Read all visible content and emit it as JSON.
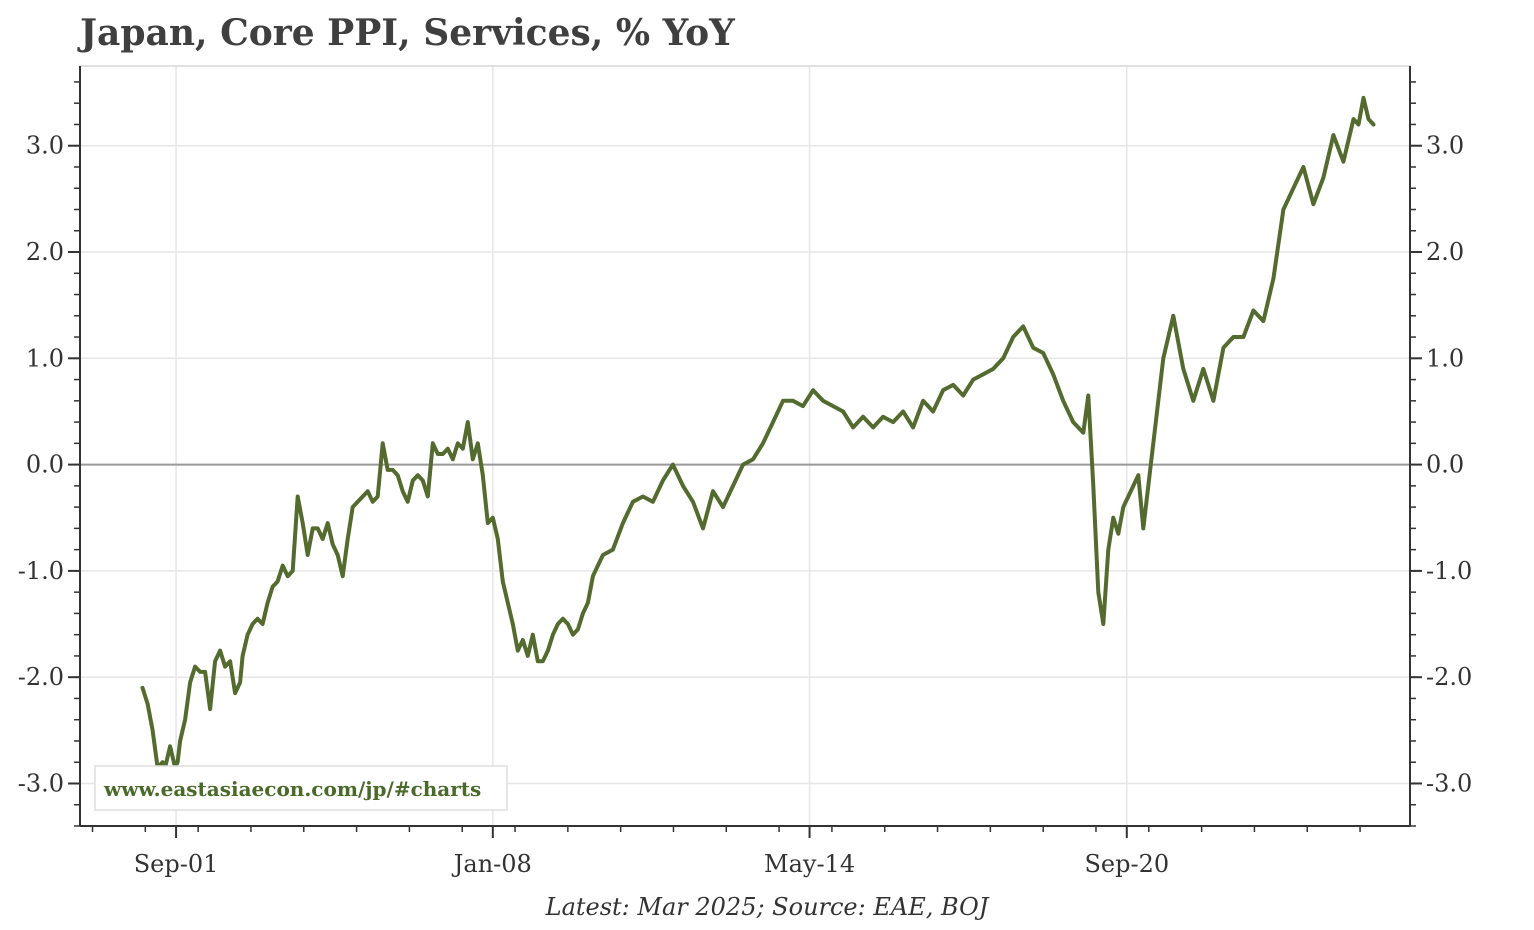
{
  "chart_data": {
    "type": "line",
    "title": "Japan, Core PPI, Services, % YoY",
    "footer": "Latest: Mar 2025; Source: EAE, BOJ",
    "watermark": "www.eastasiaecon.com/jp/#charts",
    "xlabel": "",
    "ylabel": "",
    "ylim": [
      -3.4,
      3.75
    ],
    "y_ticks": [
      -3.0,
      -2.0,
      -1.0,
      0.0,
      1.0,
      2.0,
      3.0
    ],
    "y_tick_labels": [
      "-3.0",
      "-2.0",
      "-1.0",
      "0.0",
      "1.0",
      "2.0",
      "3.0"
    ],
    "x_ticks": [
      {
        "t": 2001.67,
        "label": "Sep-01"
      },
      {
        "t": 2008.0,
        "label": "Jan-08"
      },
      {
        "t": 2014.33,
        "label": "May-14"
      },
      {
        "t": 2020.67,
        "label": "Sep-20"
      }
    ],
    "xlim": [
      1999.75,
      2026.33
    ],
    "line_color": "#536b2e",
    "series": [
      {
        "name": "Core PPI Services % YoY",
        "x": [
          2001.0,
          2001.1,
          2001.2,
          2001.3,
          2001.4,
          2001.45,
          2001.55,
          2001.65,
          2001.7,
          2001.75,
          2001.85,
          2001.95,
          2002.05,
          2002.15,
          2002.25,
          2002.35,
          2002.45,
          2002.55,
          2002.65,
          2002.75,
          2002.85,
          2002.95,
          2003.0,
          2003.1,
          2003.2,
          2003.3,
          2003.4,
          2003.5,
          2003.6,
          2003.7,
          2003.8,
          2003.9,
          2004.0,
          2004.1,
          2004.2,
          2004.3,
          2004.4,
          2004.5,
          2004.6,
          2004.7,
          2004.8,
          2004.9,
          2005.0,
          2005.1,
          2005.2,
          2005.3,
          2005.4,
          2005.5,
          2005.6,
          2005.7,
          2005.8,
          2005.9,
          2006.0,
          2006.1,
          2006.2,
          2006.3,
          2006.4,
          2006.5,
          2006.6,
          2006.7,
          2006.8,
          2006.9,
          2007.0,
          2007.1,
          2007.2,
          2007.3,
          2007.4,
          2007.5,
          2007.6,
          2007.7,
          2007.8,
          2007.9,
          2008.0,
          2008.1,
          2008.2,
          2008.3,
          2008.4,
          2008.5,
          2008.6,
          2008.7,
          2008.8,
          2008.9,
          2009.0,
          2009.1,
          2009.2,
          2009.3,
          2009.4,
          2009.5,
          2009.6,
          2009.7,
          2009.8,
          2009.9,
          2010.0,
          2010.2,
          2010.4,
          2010.6,
          2010.8,
          2011.0,
          2011.2,
          2011.4,
          2011.6,
          2011.8,
          2012.0,
          2012.2,
          2012.4,
          2012.6,
          2012.8,
          2013.0,
          2013.2,
          2013.4,
          2013.6,
          2013.8,
          2014.0,
          2014.2,
          2014.4,
          2014.6,
          2014.8,
          2015.0,
          2015.2,
          2015.4,
          2015.6,
          2015.8,
          2016.0,
          2016.2,
          2016.4,
          2016.6,
          2016.8,
          2017.0,
          2017.2,
          2017.4,
          2017.6,
          2017.8,
          2018.0,
          2018.2,
          2018.4,
          2018.6,
          2018.8,
          2019.0,
          2019.2,
          2019.4,
          2019.6,
          2019.8,
          2019.9,
          2020.0,
          2020.1,
          2020.2,
          2020.3,
          2020.4,
          2020.5,
          2020.6,
          2020.7,
          2020.8,
          2020.9,
          2021.0,
          2021.2,
          2021.4,
          2021.6,
          2021.8,
          2022.0,
          2022.2,
          2022.4,
          2022.6,
          2022.8,
          2023.0,
          2023.2,
          2023.4,
          2023.6,
          2023.8,
          2024.0,
          2024.2,
          2024.4,
          2024.6,
          2024.8,
          2025.0,
          2025.2,
          2025.3,
          2025.4,
          2025.5,
          2025.6
        ],
        "values": [
          -2.1,
          -2.25,
          -2.5,
          -2.85,
          -2.8,
          -2.85,
          -2.65,
          -2.85,
          -2.8,
          -2.6,
          -2.4,
          -2.05,
          -1.9,
          -1.95,
          -1.95,
          -2.3,
          -1.85,
          -1.75,
          -1.9,
          -1.85,
          -2.15,
          -2.05,
          -1.8,
          -1.6,
          -1.5,
          -1.45,
          -1.5,
          -1.3,
          -1.15,
          -1.1,
          -0.95,
          -1.05,
          -1.0,
          -0.3,
          -0.55,
          -0.85,
          -0.6,
          -0.6,
          -0.7,
          -0.55,
          -0.75,
          -0.85,
          -1.05,
          -0.7,
          -0.4,
          -0.35,
          -0.3,
          -0.25,
          -0.35,
          -0.3,
          0.2,
          -0.05,
          -0.05,
          -0.1,
          -0.25,
          -0.35,
          -0.15,
          -0.1,
          -0.15,
          -0.3,
          0.2,
          0.1,
          0.1,
          0.15,
          0.05,
          0.2,
          0.15,
          0.4,
          0.05,
          0.2,
          -0.1,
          -0.55,
          -0.5,
          -0.7,
          -1.1,
          -1.3,
          -1.5,
          -1.75,
          -1.65,
          -1.8,
          -1.6,
          -1.85,
          -1.85,
          -1.75,
          -1.6,
          -1.5,
          -1.45,
          -1.5,
          -1.6,
          -1.55,
          -1.4,
          -1.3,
          -1.05,
          -0.85,
          -0.8,
          -0.55,
          -0.35,
          -0.3,
          -0.35,
          -0.15,
          0.0,
          -0.2,
          -0.35,
          -0.6,
          -0.25,
          -0.4,
          -0.2,
          0.0,
          0.05,
          0.2,
          0.4,
          0.6,
          0.6,
          0.55,
          0.7,
          0.6,
          0.55,
          0.5,
          0.35,
          0.45,
          0.35,
          0.45,
          0.4,
          0.5,
          0.35,
          0.6,
          0.5,
          0.7,
          0.75,
          0.65,
          0.8,
          0.85,
          0.9,
          1.0,
          1.2,
          1.3,
          1.1,
          1.05,
          0.85,
          0.6,
          0.4,
          0.3,
          0.65,
          -0.2,
          -1.2,
          -1.5,
          -0.8,
          -0.5,
          -0.65,
          -0.4,
          -0.3,
          -0.2,
          -0.1,
          -0.6,
          0.2,
          1.0,
          1.4,
          0.9,
          0.6,
          0.9,
          0.6,
          1.1,
          1.2,
          1.2,
          1.45,
          1.35,
          1.75,
          2.4,
          2.6,
          2.8,
          2.45,
          2.7,
          3.1,
          2.85,
          3.25,
          3.2,
          3.45,
          3.25,
          3.2
        ]
      }
    ]
  }
}
